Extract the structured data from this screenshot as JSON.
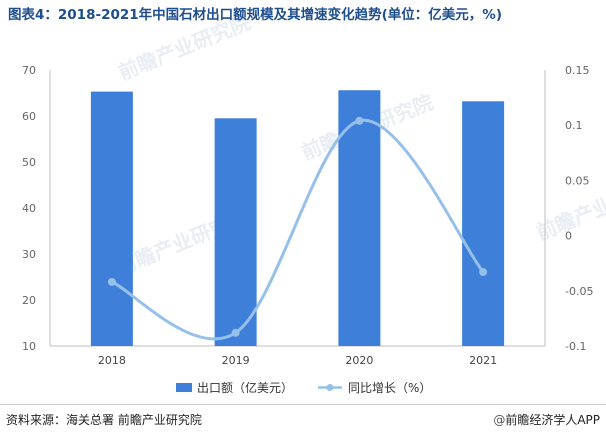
{
  "title": "图表4：2018-2021年中国石材出口额规模及其增速变化趋势(单位：亿美元，%)",
  "chart_data": {
    "type": "bar",
    "categories": [
      "2018",
      "2019",
      "2020",
      "2021"
    ],
    "series": [
      {
        "name": "出口额（亿美元）",
        "type": "bar",
        "axis": "left",
        "values": [
          65.3,
          59.5,
          65.6,
          63.2
        ]
      },
      {
        "name": "同比增长（%）",
        "type": "line",
        "axis": "right",
        "smooth": true,
        "values": [
          -0.042,
          -0.088,
          0.104,
          -0.033
        ]
      }
    ],
    "y_left": {
      "lim": [
        10,
        70
      ],
      "ticks": [
        "10",
        "20",
        "30",
        "40",
        "50",
        "60",
        "70"
      ]
    },
    "y_right": {
      "lim": [
        -0.1,
        0.15
      ],
      "ticks": [
        "-0.1",
        "-0.05",
        "0",
        "0.05",
        "0.1",
        "0.15"
      ]
    },
    "legend_position": "bottom-center",
    "grid": false,
    "colors": {
      "bar": "#3d7fd9",
      "line": "#96c0ea",
      "title": "#1f4e8c",
      "axis": "#bfbfbf",
      "tick_text": "#666666"
    }
  },
  "watermark": "前瞻产业研究院",
  "footer": {
    "source": "资料来源：海关总署 前瞻产业研究院",
    "brand_mark": "@",
    "brand": "前瞻经济学人APP"
  }
}
